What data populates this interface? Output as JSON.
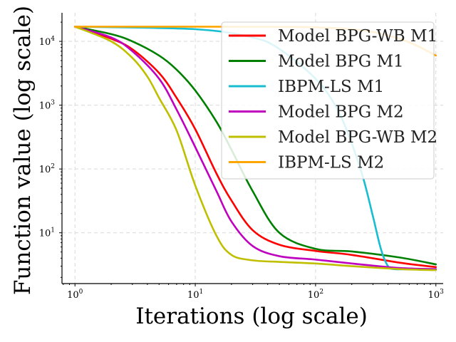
{
  "chart_data": {
    "type": "line",
    "xscale": "log",
    "yscale": "log",
    "xlabel": "Iterations (log scale)",
    "ylabel": "Function value (log scale)",
    "xlim": [
      0.78,
      1150
    ],
    "ylim": [
      1.6,
      28000
    ],
    "grid": true,
    "legend_position": "top-right",
    "xticks": [
      {
        "value": 1,
        "base": "10",
        "exp": "0"
      },
      {
        "value": 10,
        "base": "10",
        "exp": "1"
      },
      {
        "value": 100,
        "base": "10",
        "exp": "2"
      },
      {
        "value": 1000,
        "base": "10",
        "exp": "3"
      }
    ],
    "yticks": [
      {
        "value": 10,
        "base": "10",
        "exp": "1"
      },
      {
        "value": 100,
        "base": "10",
        "exp": "2"
      },
      {
        "value": 1000,
        "base": "10",
        "exp": "3"
      },
      {
        "value": 10000,
        "base": "10",
        "exp": "4"
      }
    ],
    "series": [
      {
        "name": "Model BPG-WB M1",
        "color": "#ff0000",
        "x": [
          1,
          2,
          3,
          5,
          7,
          10,
          15,
          20,
          30,
          50,
          100,
          200,
          500,
          1000
        ],
        "y": [
          17000,
          11000,
          7500,
          3200,
          1300,
          420,
          85,
          32,
          11,
          6.5,
          5.2,
          4.5,
          3.4,
          2.9
        ]
      },
      {
        "name": "Model BPG M1",
        "color": "#008000",
        "x": [
          1,
          2,
          3,
          5,
          7,
          10,
          15,
          20,
          30,
          50,
          100,
          200,
          500,
          1000
        ],
        "y": [
          17000,
          13000,
          10000,
          6000,
          3600,
          1700,
          550,
          200,
          45,
          10,
          5.6,
          5.1,
          4.1,
          3.2
        ]
      },
      {
        "name": "IBPM-LS M1",
        "color": "#17becf",
        "x": [
          1,
          10,
          30,
          50,
          100,
          150,
          200,
          250,
          300,
          350,
          400,
          450,
          600,
          1000
        ],
        "y": [
          17000,
          15500,
          11500,
          7600,
          2600,
          900,
          250,
          70,
          18,
          5.5,
          3.0,
          2.7,
          2.7,
          2.7
        ]
      },
      {
        "name": "Model BPG M2",
        "color": "#bf00bf",
        "x": [
          1,
          2,
          3,
          5,
          7,
          10,
          15,
          20,
          30,
          50,
          100,
          200,
          500,
          1000
        ],
        "y": [
          17000,
          11500,
          7000,
          2600,
          850,
          220,
          45,
          15,
          6.2,
          4.3,
          3.8,
          3.3,
          2.8,
          2.7
        ]
      },
      {
        "name": "Model BPG-WB M2",
        "color": "#bfbf00",
        "x": [
          1,
          2,
          3,
          4,
          5,
          7,
          10,
          15,
          20,
          30,
          50,
          100,
          200,
          500,
          1000
        ],
        "y": [
          17000,
          10000,
          5500,
          2800,
          1300,
          400,
          55,
          9,
          4.5,
          3.7,
          3.5,
          3.3,
          3.0,
          2.7,
          2.6
        ]
      },
      {
        "name": "IBPM-LS M2",
        "color": "#ffa500",
        "x": [
          1,
          10,
          50,
          100,
          200,
          300,
          500,
          700,
          1000
        ],
        "y": [
          17000,
          17000,
          16900,
          16600,
          15500,
          14000,
          11000,
          8500,
          6000
        ]
      }
    ]
  }
}
